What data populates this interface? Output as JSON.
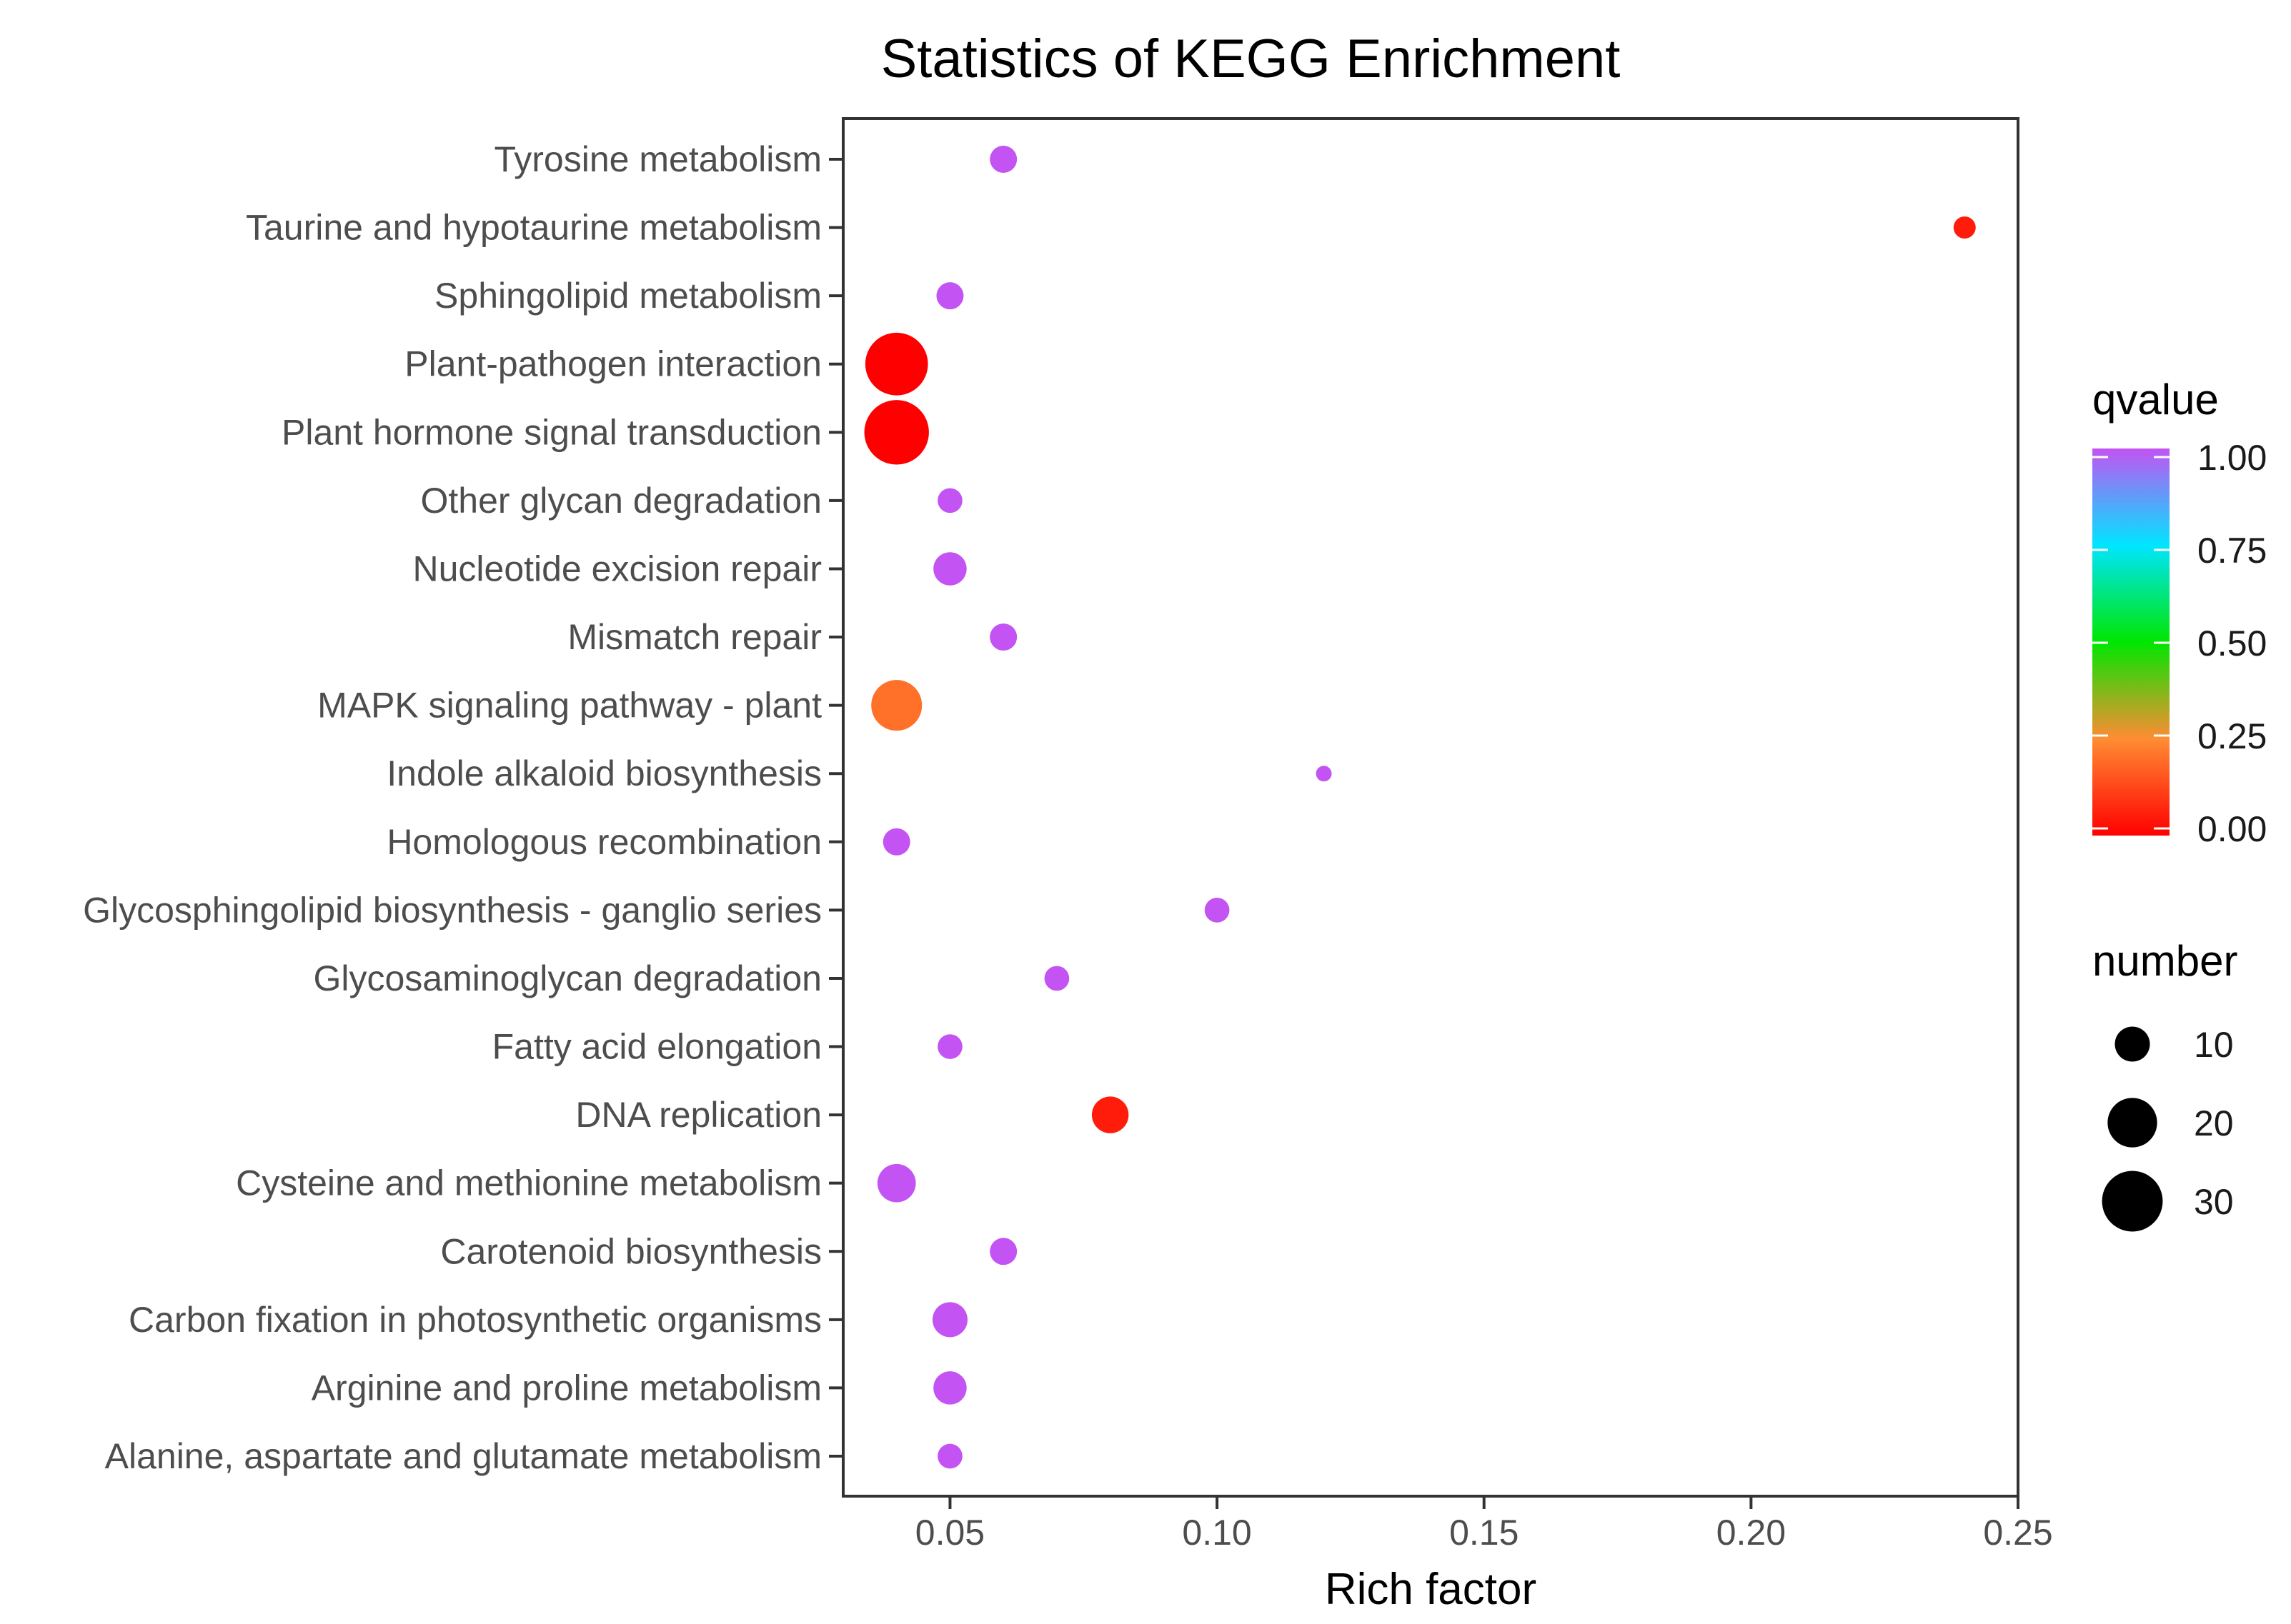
{
  "chart_data": {
    "type": "scatter",
    "title": "Statistics of KEGG Enrichment",
    "xlabel": "Rich factor",
    "ylabel": "",
    "xlim": [
      0.03,
      0.25
    ],
    "xticks": [
      "0.05",
      "0.10",
      "0.15",
      "0.20",
      "0.25"
    ],
    "grid": false,
    "legend_position": "right",
    "categories": [
      "Tyrosine metabolism",
      "Taurine and hypotaurine metabolism",
      "Sphingolipid metabolism",
      "Plant-pathogen interaction",
      "Plant hormone signal transduction",
      "Other glycan degradation",
      "Nucleotide excision repair",
      "Mismatch repair",
      "MAPK signaling pathway - plant",
      "Indole alkaloid biosynthesis",
      "Homologous recombination",
      "Glycosphingolipid biosynthesis - ganglio series",
      "Glycosaminoglycan degradation",
      "Fatty acid elongation",
      "DNA replication",
      "Cysteine and methionine metabolism",
      "Carotenoid biosynthesis",
      "Carbon fixation in photosynthetic organisms",
      "Arginine and proline metabolism",
      "Alanine, aspartate and glutamate metabolism"
    ],
    "rich_factor": [
      0.06,
      0.24,
      0.05,
      0.04,
      0.04,
      0.05,
      0.05,
      0.06,
      0.04,
      0.12,
      0.04,
      0.1,
      0.07,
      0.05,
      0.08,
      0.04,
      0.06,
      0.05,
      0.05,
      0.05
    ],
    "number": [
      6,
      4,
      6,
      32,
      34,
      5,
      9,
      6,
      21,
      2,
      6,
      5,
      5,
      5,
      11,
      12,
      6,
      10,
      9,
      5
    ],
    "qvalue": [
      1.0,
      0.05,
      1.0,
      0.0,
      0.0,
      1.0,
      1.0,
      1.0,
      0.2,
      1.0,
      1.0,
      1.0,
      1.0,
      1.0,
      0.05,
      1.0,
      1.0,
      1.0,
      1.0,
      1.0
    ],
    "color_legend": {
      "title": "qvalue",
      "ticks": [
        "1.00",
        "0.75",
        "0.50",
        "0.25",
        "0.00"
      ],
      "range": [
        0,
        1
      ],
      "stops": [
        {
          "q": 0.0,
          "color": "#ff0000"
        },
        {
          "q": 0.25,
          "color": "#ff8c33"
        },
        {
          "q": 0.5,
          "color": "#00e600"
        },
        {
          "q": 0.75,
          "color": "#00e5ff"
        },
        {
          "q": 1.0,
          "color": "#c353f2"
        }
      ]
    },
    "size_legend": {
      "title": "number",
      "values": [
        10,
        20,
        30
      ],
      "labels": [
        "10",
        "20",
        "30"
      ],
      "color": "#000000"
    }
  }
}
